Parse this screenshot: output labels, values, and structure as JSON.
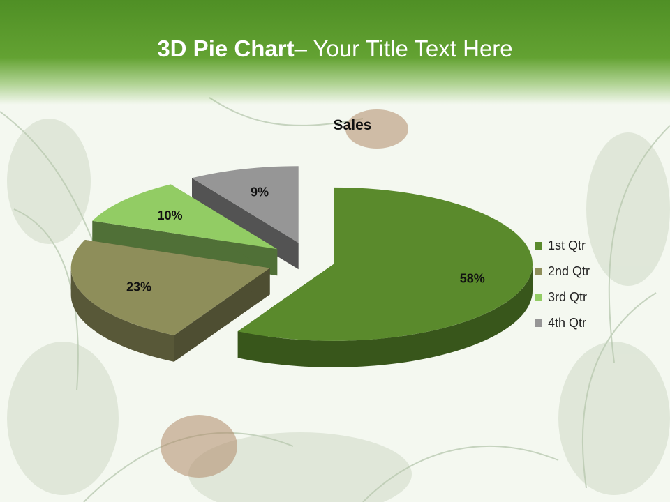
{
  "slide": {
    "title_bold": "3D Pie Chart",
    "title_rest": "– Your Title Text Here"
  },
  "chart_data": {
    "type": "pie",
    "title": "Sales",
    "categories": [
      "1st Qtr",
      "2nd Qtr",
      "3rd Qtr",
      "4th Qtr"
    ],
    "values": [
      58,
      23,
      10,
      9
    ],
    "data_labels": [
      "58%",
      "23%",
      "10%",
      "9%"
    ],
    "colors": [
      "#5a8a2c",
      "#8e8e5a",
      "#92cc64",
      "#969696"
    ],
    "exploded": true,
    "legend_position": "right",
    "three_d": true
  }
}
